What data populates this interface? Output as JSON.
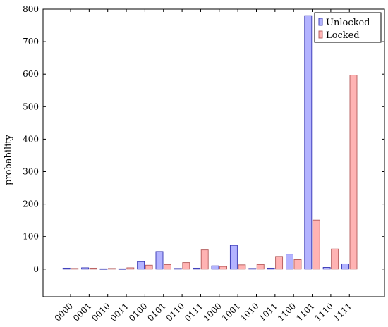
{
  "chart_data": {
    "type": "bar",
    "categories": [
      "0000",
      "0001",
      "0010",
      "0011",
      "0100",
      "0101",
      "0110",
      "0111",
      "1000",
      "1001",
      "1010",
      "1011",
      "1100",
      "1101",
      "1110",
      "1111"
    ],
    "series": [
      {
        "name": "Unlocked",
        "values": [
          3,
          4,
          1,
          1,
          23,
          54,
          2,
          3,
          10,
          73,
          2,
          3,
          46,
          780,
          5,
          16
        ]
      },
      {
        "name": "Locked",
        "values": [
          2,
          3,
          2,
          4,
          12,
          14,
          20,
          59,
          8,
          13,
          14,
          39,
          29,
          151,
          62,
          597
        ]
      }
    ],
    "xlabel": "",
    "ylabel": "probability",
    "ylim": [
      -85,
      800
    ],
    "yticks": [
      0,
      100,
      200,
      300,
      400,
      500,
      600,
      700,
      800
    ],
    "legend": "top-right",
    "grid": false,
    "colors": {
      "Unlocked": {
        "fill": "#b3b3ff",
        "stroke": "#3333b3"
      },
      "Locked": {
        "fill": "#ffb3b3",
        "stroke": "#b35959"
      }
    }
  }
}
